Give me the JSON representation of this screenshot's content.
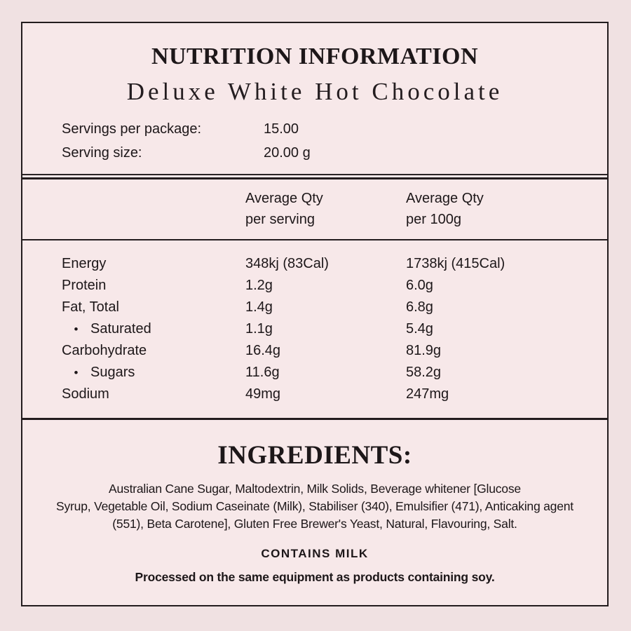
{
  "colors": {
    "outer_background": "#f0e1e2",
    "panel_background": "#f7e8e9",
    "rule": "#231c1e",
    "text": "#1d1719"
  },
  "header": {
    "title": "NUTRITION INFORMATION",
    "subtitle": "Deluxe White Hot Chocolate"
  },
  "servings": {
    "rows": [
      {
        "label": "Servings per package:",
        "value": "15.00"
      },
      {
        "label": "Serving size:",
        "value": "20.00 g"
      }
    ]
  },
  "table": {
    "columns": {
      "per_serving": {
        "line1": "Average Qty",
        "line2": "per serving"
      },
      "per_100g": {
        "line1": "Average Qty",
        "line2": "per 100g"
      }
    },
    "rows": [
      {
        "marker": "",
        "label": "Energy",
        "per_serving": "348kj (83Cal)",
        "per_100g": "1738kj (415Cal)"
      },
      {
        "marker": "",
        "label": "Protein",
        "per_serving": "1.2g",
        "per_100g": "6.0g"
      },
      {
        "marker": "",
        "label": "Fat, Total",
        "per_serving": "1.4g",
        "per_100g": "6.8g"
      },
      {
        "marker": "•",
        "label": "Saturated",
        "per_serving": "1.1g",
        "per_100g": "5.4g"
      },
      {
        "marker": "",
        "label": "Carbohydrate",
        "per_serving": "16.4g",
        "per_100g": "81.9g"
      },
      {
        "marker": "•",
        "label": "Sugars",
        "per_serving": "11.6g",
        "per_100g": "58.2g"
      },
      {
        "marker": "",
        "label": "Sodium",
        "per_serving": "49mg",
        "per_100g": "247mg"
      }
    ]
  },
  "ingredients": {
    "heading": "INGREDIENTS:",
    "lines": [
      "Australian Cane Sugar, Maltodextrin, Milk Solids, Beverage whitener [Glucose",
      "Syrup, Vegetable Oil, Sodium Caseinate (Milk), Stabiliser (340), Emulsifier (471), Anticaking agent",
      "(551), Beta Carotene], Gluten Free Brewer's Yeast, Natural, Flavouring, Salt."
    ]
  },
  "allergens": {
    "contains": "CONTAINS MILK",
    "processed_statement": "Processed on the same equipment as products containing soy."
  }
}
